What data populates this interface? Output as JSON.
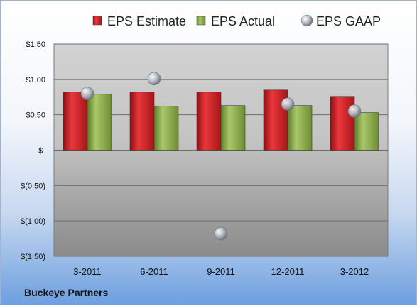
{
  "chart_data": {
    "type": "bar",
    "categories": [
      "3-2011",
      "6-2011",
      "9-2011",
      "12-2011",
      "3-2012"
    ],
    "series": [
      {
        "name": "EPS Estimate",
        "kind": "bar",
        "color": "#cc1f24",
        "values": [
          0.82,
          0.82,
          0.82,
          0.85,
          0.76
        ]
      },
      {
        "name": "EPS Actual",
        "kind": "bar",
        "color": "#8aad44",
        "values": [
          0.79,
          0.62,
          0.63,
          0.63,
          0.53
        ]
      },
      {
        "name": "EPS GAAP",
        "kind": "scatter",
        "color": "#a9b0b9",
        "values": [
          0.8,
          1.01,
          -1.18,
          0.65,
          0.55
        ]
      }
    ],
    "y_ticks": [
      {
        "value": 1.5,
        "label": "$1.50"
      },
      {
        "value": 1.0,
        "label": "$1.00"
      },
      {
        "value": 0.5,
        "label": "$0.50"
      },
      {
        "value": 0.0,
        "label": "$-"
      },
      {
        "value": -0.5,
        "label": "$(0.50)"
      },
      {
        "value": -1.0,
        "label": "$(1.00)"
      },
      {
        "value": -1.5,
        "label": "$(1.50)"
      }
    ],
    "ylim": [
      -1.5,
      1.5
    ],
    "grid": true,
    "legend_position": "top"
  },
  "company_label": "Buckeye Partners"
}
